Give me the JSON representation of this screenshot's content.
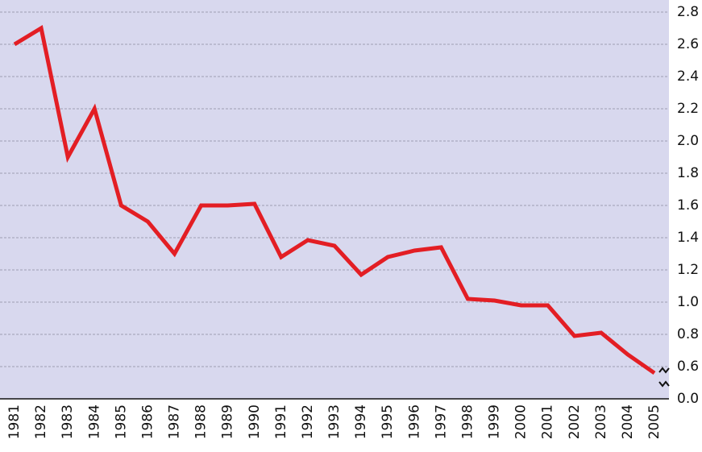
{
  "chart_data": {
    "type": "line",
    "categories": [
      "1981",
      "1982",
      "1983",
      "1984",
      "1985",
      "1986",
      "1987",
      "1988",
      "1989",
      "1990",
      "1991",
      "1992",
      "1993",
      "1994",
      "1995",
      "1996",
      "1997",
      "1998",
      "1999",
      "2000",
      "2001",
      "2002",
      "2003",
      "2004",
      "2005"
    ],
    "series": [
      {
        "color": "#e31e24",
        "values": [
          2.6,
          2.7,
          1.9,
          2.2,
          1.6,
          1.5,
          1.3,
          1.6,
          1.6,
          1.61,
          1.28,
          1.385,
          1.35,
          1.17,
          1.28,
          1.32,
          1.34,
          1.02,
          1.01,
          0.98,
          0.98,
          0.79,
          0.81,
          0.675,
          0.56
        ]
      }
    ],
    "ylim": [
      0,
      2.8
    ],
    "axis_break": [
      0,
      0.4
    ],
    "yticks": [
      {
        "value": 0,
        "label": "0.0"
      },
      0.6,
      0.8,
      {
        "value": 1,
        "label": "1.0"
      },
      1.2,
      1.4,
      1.6,
      1.8,
      {
        "value": 2,
        "label": "2.0"
      },
      2.2,
      2.4,
      2.6,
      2.8
    ],
    "grid": true,
    "background": "#d8d8ee"
  }
}
